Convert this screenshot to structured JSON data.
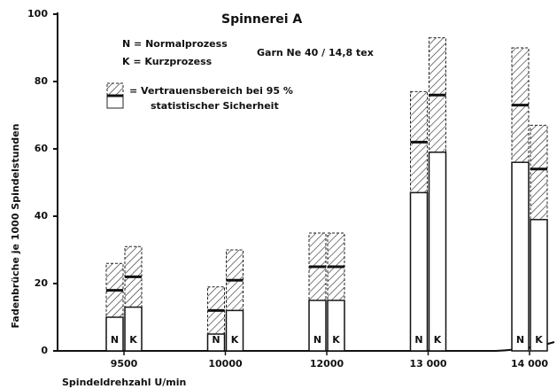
{
  "chart_data": {
    "type": "bar",
    "title": "Spinnerei A",
    "annotations": [
      "N = Normalprozess",
      "K = Kurzprozess",
      "Garn Ne 40 / 14,8 tex",
      "= Vertrauensbereich bei 95 %",
      "statistischer Sicherheit"
    ],
    "y_label": "Fadenbrüche je 1000 Spindelstunden",
    "x_label": "Spindeldrehzahl U/min",
    "categories": [
      "9500",
      "10000",
      "12000",
      "13 000",
      "14 000"
    ],
    "series": [
      {
        "name": "N",
        "values": [
          18,
          12,
          25,
          62,
          73
        ],
        "lower": [
          10,
          5,
          15,
          47,
          56
        ],
        "upper": [
          26,
          19,
          35,
          77,
          90
        ]
      },
      {
        "name": "K",
        "values": [
          22,
          21,
          25,
          76,
          54
        ],
        "lower": [
          13,
          12,
          15,
          59,
          39
        ],
        "upper": [
          31,
          30,
          35,
          93,
          67
        ]
      }
    ],
    "ylim": [
      0,
      100
    ],
    "yticks": [
      0,
      20,
      40,
      60,
      80,
      100
    ]
  }
}
